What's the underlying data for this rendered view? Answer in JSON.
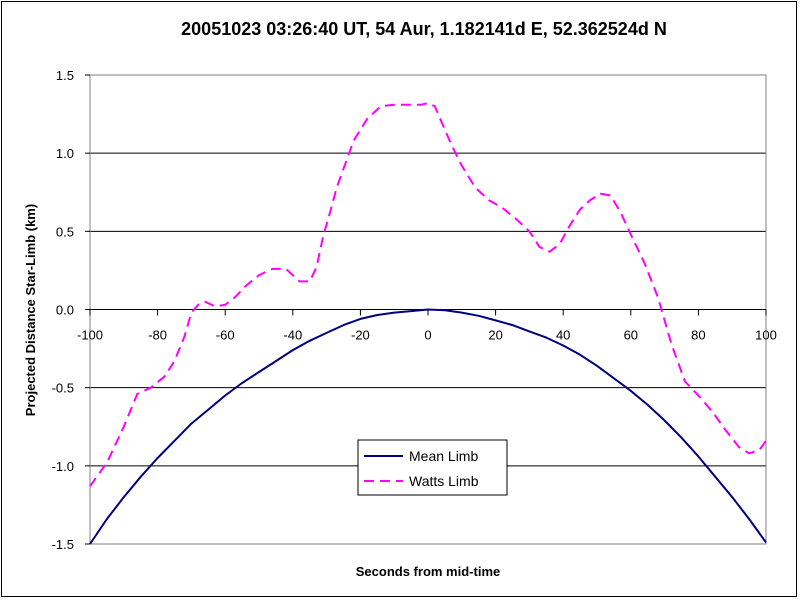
{
  "chart_data": {
    "type": "line",
    "title": "20051023 03:26:40 UT, 54 Aur, 1.182141d E, 52.362524d N",
    "xlabel": "Seconds from mid-time",
    "ylabel": "Projected Distance Star-Limb (km)",
    "xlim": [
      -100,
      100
    ],
    "ylim": [
      -1.5,
      1.5
    ],
    "x_ticks": [
      "-100",
      "-80",
      "-60",
      "-40",
      "-20",
      "0",
      "20",
      "40",
      "60",
      "80",
      "100"
    ],
    "y_ticks": [
      "1.5",
      "1.0",
      "0.5",
      "0.0",
      "-0.5",
      "-1.0",
      "-1.5"
    ],
    "grid": "horizontal",
    "legend_position": "bottom-center",
    "series": [
      {
        "name": "Mean Limb",
        "color": "#000080",
        "dash": "solid",
        "x": [
          -100,
          -95,
          -90,
          -85,
          -80,
          -75,
          -70,
          -65,
          -60,
          -55,
          -50,
          -45,
          -40,
          -35,
          -30,
          -25,
          -20,
          -15,
          -10,
          -5,
          0,
          5,
          10,
          15,
          20,
          25,
          30,
          35,
          40,
          45,
          50,
          55,
          60,
          65,
          70,
          75,
          80,
          85,
          90,
          95,
          100
        ],
        "y": [
          -1.5,
          -1.34,
          -1.2,
          -1.07,
          -0.95,
          -0.84,
          -0.73,
          -0.64,
          -0.55,
          -0.47,
          -0.4,
          -0.33,
          -0.26,
          -0.2,
          -0.15,
          -0.1,
          -0.06,
          -0.035,
          -0.02,
          -0.01,
          0.0,
          -0.005,
          -0.02,
          -0.04,
          -0.07,
          -0.1,
          -0.14,
          -0.18,
          -0.23,
          -0.29,
          -0.36,
          -0.44,
          -0.52,
          -0.61,
          -0.71,
          -0.82,
          -0.94,
          -1.07,
          -1.2,
          -1.34,
          -1.49
        ]
      },
      {
        "name": "Watts Limb",
        "color": "#ff00ff",
        "dash": "dashed",
        "x": [
          -100,
          -95,
          -90,
          -86,
          -82,
          -78,
          -75,
          -72,
          -70,
          -68,
          -66,
          -63,
          -60,
          -57,
          -54,
          -50,
          -46,
          -42,
          -38,
          -35,
          -33,
          -31,
          -29,
          -27,
          -25,
          -22,
          -18,
          -14,
          -10,
          -6,
          -2,
          0,
          2,
          4,
          7,
          10,
          14,
          18,
          22,
          26,
          30,
          33,
          36,
          39,
          42,
          45,
          48,
          51,
          54,
          57,
          60,
          64,
          68,
          72,
          76,
          80,
          84,
          88,
          92,
          95,
          98,
          100
        ],
        "y": [
          -1.13,
          -0.98,
          -0.75,
          -0.54,
          -0.5,
          -0.43,
          -0.33,
          -0.17,
          -0.02,
          0.03,
          0.05,
          0.02,
          0.03,
          0.08,
          0.15,
          0.22,
          0.26,
          0.26,
          0.18,
          0.18,
          0.27,
          0.47,
          0.62,
          0.78,
          0.9,
          1.08,
          1.22,
          1.3,
          1.31,
          1.31,
          1.31,
          1.32,
          1.3,
          1.2,
          1.05,
          0.92,
          0.78,
          0.7,
          0.65,
          0.58,
          0.5,
          0.4,
          0.37,
          0.42,
          0.54,
          0.64,
          0.7,
          0.74,
          0.73,
          0.62,
          0.48,
          0.3,
          0.08,
          -0.22,
          -0.46,
          -0.55,
          -0.65,
          -0.77,
          -0.88,
          -0.92,
          -0.9,
          -0.84
        ]
      }
    ]
  }
}
